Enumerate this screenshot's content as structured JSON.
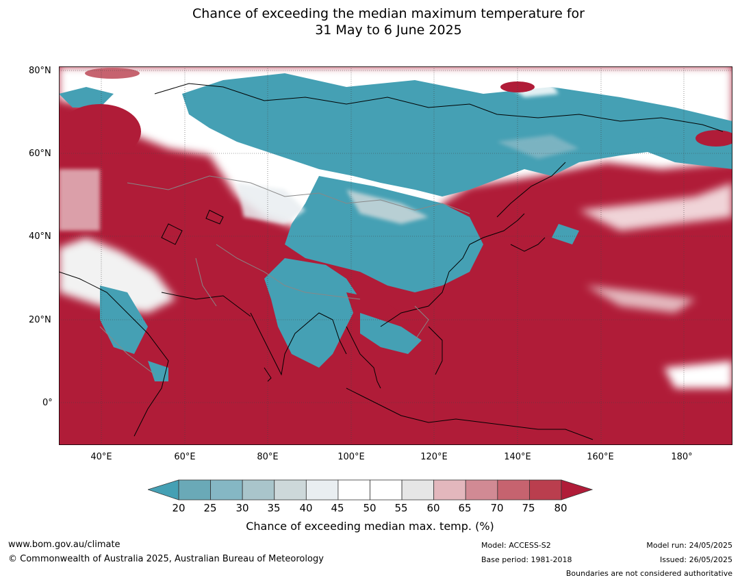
{
  "title": {
    "line1": "Chance of exceeding the median maximum temperature for",
    "line2": "31 May to 6 June 2025"
  },
  "map": {
    "lat_labels": [
      "80°N",
      "60°N",
      "40°N",
      "20°N",
      "0°"
    ],
    "lon_labels": [
      "40°E",
      "60°E",
      "80°E",
      "100°E",
      "120°E",
      "140°E",
      "160°E",
      "180°"
    ]
  },
  "legend": {
    "ticks": [
      "20",
      "25",
      "30",
      "35",
      "40",
      "45",
      "50",
      "55",
      "60",
      "65",
      "70",
      "75",
      "80"
    ],
    "colors": [
      "#45a0b4",
      "#6aa9b7",
      "#85b7c4",
      "#a9c5cb",
      "#cdd8da",
      "#e9eef1",
      "#ffffff",
      "#ffffff",
      "#e6e6e6",
      "#e3b7bd",
      "#d18a94",
      "#c6636f",
      "#ba3e4e",
      "#b01c38"
    ],
    "label": "Chance of exceeding median max. temp. (%)"
  },
  "footer": {
    "website": "www.bom.gov.au/climate",
    "copyright": "© Commonwealth of Australia 2025, Australian Bureau of Meteorology",
    "model": "Model: ACCESS-S2",
    "base_period": "Base period: 1981-2018",
    "model_run": "Model run: 24/05/2025",
    "issued": "Issued: 26/05/2025",
    "disclaimer": "Boundaries are not considered authoritative"
  }
}
